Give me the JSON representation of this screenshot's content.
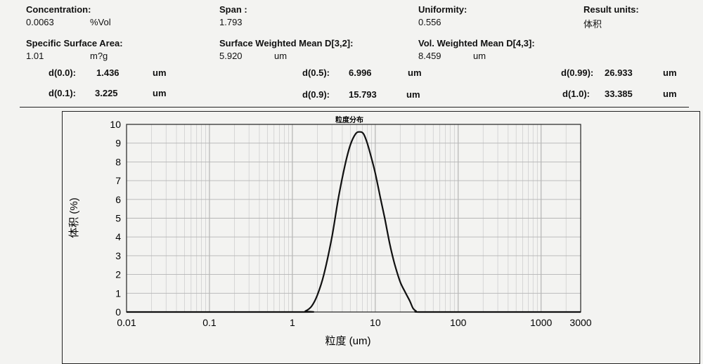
{
  "summary": {
    "concentration": {
      "label": "Concentration:",
      "value": "0.0063",
      "unit": "%Vol"
    },
    "span": {
      "label": "Span :",
      "value": "1.793"
    },
    "uniformity": {
      "label": "Uniformity:",
      "value": "0.556"
    },
    "result_units": {
      "label": "Result units:",
      "value": "体积"
    },
    "ssa": {
      "label": "Specific Surface Area:",
      "value": "1.01",
      "unit": "m?g"
    },
    "d32": {
      "label": "Surface Weighted Mean D[3,2]:",
      "value": "5.920",
      "unit": "um"
    },
    "d43": {
      "label": "Vol. Weighted Mean D[4,3]:",
      "value": "8.459",
      "unit": "um"
    }
  },
  "percentiles": [
    {
      "label": "d(0.0):",
      "value": "1.436",
      "unit": "um"
    },
    {
      "label": "d(0.1):",
      "value": "3.225",
      "unit": "um"
    },
    {
      "label": "d(0.5):",
      "value": "6.996",
      "unit": "um"
    },
    {
      "label": "d(0.9):",
      "value": "15.793",
      "unit": "um"
    },
    {
      "label": "d(0.99):",
      "value": "26.933",
      "unit": "um"
    },
    {
      "label": "d(1.0):",
      "value": "33.385",
      "unit": "um"
    }
  ],
  "chart_data": {
    "type": "line",
    "title": "粒度分布",
    "xlabel": "粒度 (um)",
    "ylabel": "体积 (%)",
    "x_scale": "log",
    "xlim": [
      0.01,
      3000
    ],
    "ylim": [
      0,
      10
    ],
    "x_tick_labels": [
      "0.01",
      "0.1",
      "1",
      "10",
      "100",
      "1000",
      "3000"
    ],
    "y_tick_labels": [
      "0",
      "1",
      "2",
      "3",
      "4",
      "5",
      "6",
      "7",
      "8",
      "9",
      "10"
    ],
    "grid": true,
    "series": [
      {
        "x": [
          0.01,
          1.2,
          1.436,
          1.7,
          2.0,
          2.4,
          3.0,
          3.6,
          4.3,
          5.0,
          5.8,
          6.5,
          7.2,
          8.0,
          9.0,
          10.0,
          11.5,
          13.0,
          15.0,
          17.0,
          20.0,
          23.0,
          26.0,
          28.5,
          31.0,
          33.385,
          100,
          3000
        ],
        "y": [
          0.0,
          0.0,
          0.05,
          0.3,
          0.9,
          2.0,
          4.0,
          6.1,
          7.8,
          8.9,
          9.5,
          9.6,
          9.5,
          9.0,
          8.2,
          7.4,
          6.1,
          5.0,
          3.6,
          2.6,
          1.6,
          1.05,
          0.6,
          0.2,
          0.05,
          0.0,
          0.0,
          0.0
        ]
      }
    ]
  }
}
